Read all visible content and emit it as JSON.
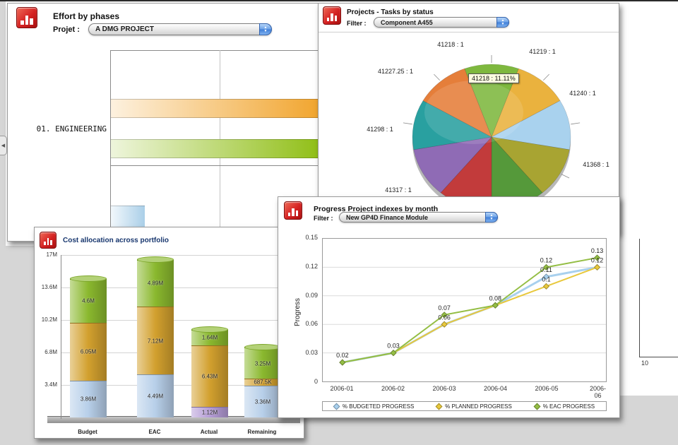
{
  "chrome": {
    "collapse_arrow": "◀",
    "bg_axis_label": "10"
  },
  "effort_panel": {
    "title": "Effort by phases",
    "project_label": "Projet :",
    "project_value": "A DMG PROJECT",
    "chart_data": {
      "type": "bar",
      "orientation": "horizontal",
      "categories": [
        "01. ENGINEERING"
      ],
      "bars": [
        {
          "name": "phase-bar-orange",
          "color": "#f1a42c",
          "length_frac": 1.0
        },
        {
          "name": "phase-bar-green",
          "color": "#8fbe14",
          "length_frac": 1.0
        },
        {
          "name": "phase-bar-blue-partial",
          "color": "#aacfe8",
          "length_frac": 0.16
        }
      ]
    }
  },
  "pie_panel": {
    "title": "Projects - Tasks by status",
    "filter_label": "Filter :",
    "filter_value": "Component A455",
    "tooltip": "41218 : 11.11%",
    "chart_data": {
      "type": "pie",
      "slices": [
        {
          "label": "41218 : 1",
          "value": 1,
          "color": "#7eb83e"
        },
        {
          "label": "41219 : 1",
          "value": 1,
          "color": "#eab23e"
        },
        {
          "label": "41240 : 1",
          "value": 1,
          "color": "#a9d2ee"
        },
        {
          "label": "41368 : 1",
          "value": 1,
          "color": "#a8a432"
        },
        {
          "label": "",
          "value": 1,
          "color": "#55993a"
        },
        {
          "label": "41317 : 1",
          "value": 1,
          "color": "#c23b3b"
        },
        {
          "label": "",
          "value": 1,
          "color": "#8f6bb5"
        },
        {
          "label": "41298 : 1",
          "value": 1,
          "color": "#29a0a0"
        },
        {
          "label": "41227.25 : 1",
          "value": 1,
          "color": "#e57e3a"
        }
      ]
    }
  },
  "cost_panel": {
    "title": "Cost allocation across portfolio",
    "chart_data": {
      "type": "stacked-bar",
      "categories": [
        "Budget",
        "EAC",
        "Actual",
        "Remaining"
      ],
      "yticks": [
        "3.4M",
        "6.8M",
        "10.2M",
        "13.6M",
        "17M"
      ],
      "ymax": 17,
      "series": [
        {
          "name": "base",
          "values": [
            3.86,
            4.49,
            1.12,
            3.36
          ],
          "labels": [
            "3.86M",
            "4.49M",
            "1.12M",
            "3.36M"
          ],
          "colors": [
            "#b7cfe9",
            "#b7cfe9",
            "#b49bd6",
            "#b7cfe9"
          ]
        },
        {
          "name": "mid",
          "values": [
            6.05,
            7.12,
            6.43,
            0.6875
          ],
          "labels": [
            "6.05M",
            "7.12M",
            "6.43M",
            "687.5K"
          ],
          "colors": [
            "#d2a02e",
            "#d2a02e",
            "#d2a02e",
            "#d2a02e"
          ]
        },
        {
          "name": "top",
          "values": [
            4.6,
            4.89,
            1.64,
            3.25
          ],
          "labels": [
            "4.6M",
            "4.89M",
            "1.64M",
            "3.25M"
          ],
          "colors": [
            "#8ab82e",
            "#8ab82e",
            "#8ab82e",
            "#8ab82e"
          ]
        }
      ]
    }
  },
  "progress_panel": {
    "title": "Progress Project indexes by month",
    "filter_label": "Filter :",
    "filter_value": "New GP4D Finance Module",
    "ylabel": "Progress",
    "chart_data": {
      "type": "line",
      "x": [
        "2006-01",
        "2006-02",
        "2006-03",
        "2006-04",
        "2006-05",
        "2006-06"
      ],
      "ylim": [
        0,
        0.15
      ],
      "yticks": [
        0,
        0.03,
        0.06,
        0.09,
        0.12,
        0.15
      ],
      "grid": true,
      "legend_position": "bottom",
      "series": [
        {
          "name": "% BUDGETED PROGRESS",
          "color": "#a8d0ee",
          "values": [
            0.02,
            0.03,
            0.06,
            0.08,
            0.11,
            0.12
          ]
        },
        {
          "name": "% PLANNED PROGRESS",
          "color": "#e8c83c",
          "values": [
            0.02,
            0.03,
            0.06,
            0.08,
            0.1,
            0.12
          ]
        },
        {
          "name": "% EAC PROGRESS",
          "color": "#94be44",
          "values": [
            0.02,
            0.03,
            0.07,
            0.08,
            0.12,
            0.13
          ]
        }
      ]
    }
  }
}
